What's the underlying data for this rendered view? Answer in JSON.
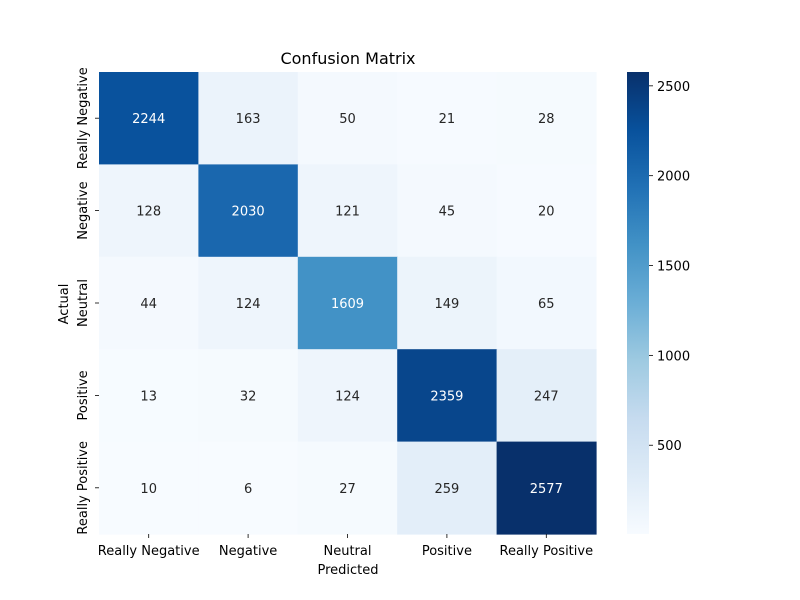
{
  "chart_data": {
    "type": "heatmap",
    "title": "Confusion Matrix",
    "xlabel": "Predicted",
    "ylabel": "Actual",
    "x_categories": [
      "Really Negative",
      "Negative",
      "Neutral",
      "Positive",
      "Really Positive"
    ],
    "y_categories": [
      "Really Negative",
      "Negative",
      "Neutral",
      "Positive",
      "Really Positive"
    ],
    "values": [
      [
        2244,
        163,
        50,
        21,
        28
      ],
      [
        128,
        2030,
        121,
        45,
        20
      ],
      [
        44,
        124,
        1609,
        149,
        65
      ],
      [
        13,
        32,
        124,
        2359,
        247
      ],
      [
        10,
        6,
        27,
        259,
        2577
      ]
    ],
    "colormap": "Blues",
    "colorbar": {
      "min": 6,
      "max": 2577,
      "ticks": [
        500,
        1000,
        1500,
        2000,
        2500
      ]
    },
    "colors": {
      "low": "#f7fbff",
      "high": "#08306b"
    }
  }
}
